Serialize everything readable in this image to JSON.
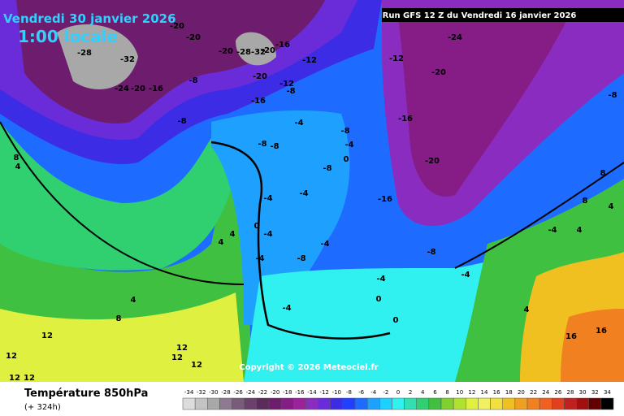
{
  "header": {
    "date": "Vendredi 30 janvier 2026",
    "time": "1:00 locale",
    "run": "Run GFS 12 Z du Vendredi 16 janvier 2026"
  },
  "map": {
    "copyright": "Copyright © 2026 Meteociel.fr",
    "contour_labels": [
      -28,
      -32,
      -24,
      -20,
      -16,
      -20,
      -20,
      -20,
      -28,
      -32,
      -20,
      -16,
      -12,
      -12,
      -8,
      -16,
      -20,
      -8,
      -8,
      -12,
      -24,
      -20,
      -16,
      -20,
      -16,
      -8,
      -4,
      -4,
      -8,
      -8,
      -8,
      0,
      -4,
      -4,
      0,
      -4,
      -4,
      -8,
      -4,
      -8,
      -4,
      0,
      -4,
      0,
      -4,
      4,
      16,
      16,
      8,
      4,
      4,
      4,
      8,
      4,
      12,
      12,
      12,
      12,
      12,
      12,
      12,
      -4,
      4,
      -8,
      8,
      4,
      8
    ]
  },
  "footer": {
    "title": "Température 850hPa",
    "lead": "(+ 324h)"
  },
  "legend": {
    "values": [
      -34,
      -32,
      -30,
      -28,
      -26,
      -24,
      -22,
      -20,
      -18,
      -16,
      -14,
      -12,
      -10,
      -8,
      -6,
      -4,
      -2,
      0,
      2,
      4,
      6,
      8,
      10,
      12,
      14,
      16,
      18,
      20,
      22,
      24,
      26,
      28,
      30,
      32,
      34
    ],
    "colors": [
      "#dcdcdc",
      "#c4c4c4",
      "#a8a8a8",
      "#8e7a8e",
      "#7a5c7a",
      "#6a416a",
      "#5a2c5a",
      "#6e1c6e",
      "#861c86",
      "#9c229c",
      "#8a2cbf",
      "#6a2cd8",
      "#3c2ce6",
      "#1e40ff",
      "#1e6cff",
      "#1ea0ff",
      "#1ed0ff",
      "#30f0f0",
      "#30e0b0",
      "#30d070",
      "#40c040",
      "#80d030",
      "#b0e030",
      "#e0f040",
      "#f0f060",
      "#f0e040",
      "#f0c020",
      "#f0a020",
      "#f08020",
      "#f06020",
      "#e04020",
      "#c02020",
      "#a01010",
      "#600000",
      "#000000"
    ]
  }
}
